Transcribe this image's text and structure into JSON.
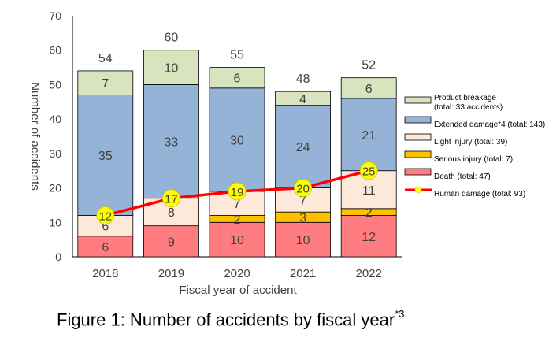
{
  "figure_caption": "Figure 1: Number of accidents by fiscal year",
  "figure_caption_note": "*3",
  "chart_data": {
    "type": "bar",
    "stacked": true,
    "categories": [
      "2018",
      "2019",
      "2020",
      "2021",
      "2022"
    ],
    "xlabel": "Fiscal year of accident",
    "ylabel": "Number of accidents",
    "ylim": [
      0,
      70
    ],
    "yticks": [
      0,
      10,
      20,
      30,
      40,
      50,
      60,
      70
    ],
    "totals": [
      54,
      60,
      55,
      48,
      52
    ],
    "series": [
      {
        "name": "Death (total: 47)",
        "color": "#ff7c80",
        "values": [
          6,
          9,
          10,
          10,
          12
        ],
        "labels": [
          "6",
          "9",
          "10",
          "10",
          "12"
        ]
      },
      {
        "name": "Serious injury (total: 7)",
        "color": "#ffc000",
        "values": [
          0,
          0,
          2,
          3,
          2
        ],
        "labels": [
          "",
          "",
          "2",
          "3",
          "2"
        ]
      },
      {
        "name": "Light injury (total: 39)",
        "color": "#fde9d9",
        "values": [
          6,
          8,
          7,
          7,
          11
        ],
        "labels": [
          "6",
          "8",
          "7",
          "7",
          "11"
        ]
      },
      {
        "name": "Extended damage*4 (total: 143)",
        "color": "#95b3d7",
        "values": [
          35,
          33,
          30,
          24,
          21
        ],
        "labels": [
          "35",
          "33",
          "30",
          "24",
          "21"
        ]
      },
      {
        "name": "Product breakage (total: 33 accidents)",
        "color": "#d7e4bd",
        "values": [
          7,
          10,
          6,
          4,
          6
        ],
        "labels": [
          "7",
          "10",
          "6",
          "4",
          "6"
        ]
      }
    ],
    "line_series": {
      "name": "Human damage (total: 93)",
      "color": "#ff0000",
      "marker_color": "#ffff00",
      "values": [
        12,
        17,
        19,
        20,
        25
      ]
    },
    "legend": [
      {
        "key": "product",
        "lines": [
          "Product breakage",
          "(total: 33 accidents)"
        ],
        "color": "#d7e4bd",
        "type": "box"
      },
      {
        "key": "extended",
        "lines": [
          "Extended damage*4 (total: 143)"
        ],
        "color": "#95b3d7",
        "type": "box"
      },
      {
        "key": "light",
        "lines": [
          "Light injury (total: 39)"
        ],
        "color": "#fde9d9",
        "type": "box"
      },
      {
        "key": "serious",
        "lines": [
          "Serious injury (total: 7)"
        ],
        "color": "#ffc000",
        "type": "box"
      },
      {
        "key": "death",
        "lines": [
          "Death (total: 47)"
        ],
        "color": "#ff7c80",
        "type": "box"
      },
      {
        "key": "human",
        "lines": [
          "Human damage (total: 93)"
        ],
        "color": "#ff0000",
        "type": "line"
      }
    ],
    "legend_position": "right"
  }
}
